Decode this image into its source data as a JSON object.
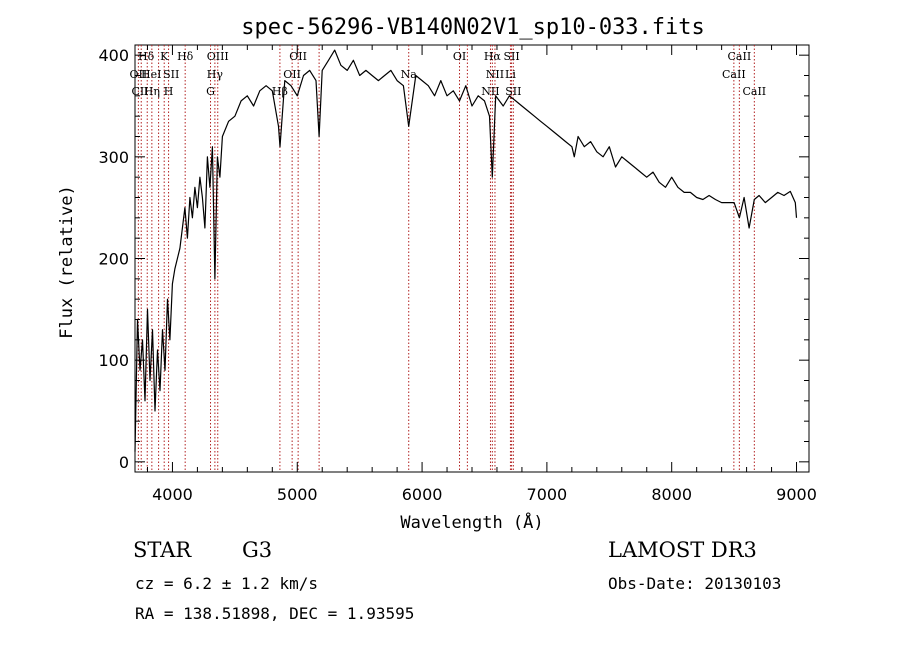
{
  "chart_data": {
    "type": "line",
    "title": "spec-56296-VB140N02V1_sp10-033.fits",
    "xlabel": "Wavelength (Å)",
    "ylabel": "Flux (relative)",
    "xlim": [
      3700,
      9100
    ],
    "ylim": [
      -10,
      410
    ],
    "xticks": [
      4000,
      5000,
      6000,
      7000,
      8000,
      9000
    ],
    "yticks": [
      0,
      100,
      200,
      300,
      400
    ],
    "grid": false,
    "series": [
      {
        "name": "flux",
        "x": [
          3700,
          3720,
          3740,
          3760,
          3780,
          3800,
          3820,
          3840,
          3860,
          3880,
          3900,
          3920,
          3940,
          3960,
          3980,
          4000,
          4020,
          4040,
          4060,
          4080,
          4100,
          4120,
          4140,
          4160,
          4180,
          4200,
          4220,
          4240,
          4260,
          4280,
          4300,
          4320,
          4340,
          4360,
          4380,
          4400,
          4450,
          4500,
          4550,
          4600,
          4650,
          4700,
          4750,
          4800,
          4850,
          4862,
          4900,
          4950,
          5000,
          5050,
          5100,
          5150,
          5175,
          5200,
          5250,
          5300,
          5350,
          5400,
          5450,
          5500,
          5550,
          5600,
          5650,
          5700,
          5750,
          5800,
          5850,
          5893,
          5950,
          6000,
          6050,
          6100,
          6150,
          6200,
          6250,
          6300,
          6350,
          6400,
          6450,
          6500,
          6540,
          6563,
          6590,
          6650,
          6700,
          6750,
          6800,
          6850,
          6900,
          6950,
          7000,
          7050,
          7100,
          7150,
          7200,
          7220,
          7250,
          7300,
          7350,
          7400,
          7450,
          7500,
          7550,
          7600,
          7650,
          7700,
          7750,
          7800,
          7850,
          7900,
          7950,
          8000,
          8050,
          8100,
          8150,
          8200,
          8250,
          8300,
          8350,
          8400,
          8450,
          8500,
          8542,
          8580,
          8620,
          8662,
          8700,
          8750,
          8800,
          8850,
          8900,
          8950,
          8990,
          9000
        ],
        "y": [
          10,
          140,
          90,
          120,
          60,
          150,
          80,
          130,
          50,
          110,
          70,
          130,
          90,
          160,
          120,
          175,
          190,
          200,
          210,
          230,
          250,
          220,
          260,
          240,
          270,
          250,
          280,
          260,
          230,
          300,
          270,
          310,
          180,
          300,
          280,
          320,
          335,
          340,
          355,
          360,
          350,
          365,
          370,
          365,
          330,
          310,
          375,
          370,
          360,
          380,
          385,
          375,
          320,
          385,
          395,
          405,
          390,
          385,
          395,
          380,
          385,
          380,
          375,
          380,
          385,
          375,
          370,
          330,
          380,
          375,
          370,
          360,
          375,
          360,
          365,
          355,
          370,
          350,
          360,
          355,
          340,
          280,
          360,
          350,
          360,
          355,
          350,
          345,
          340,
          335,
          330,
          325,
          320,
          315,
          310,
          300,
          320,
          310,
          315,
          305,
          300,
          310,
          290,
          300,
          295,
          290,
          285,
          280,
          285,
          275,
          270,
          280,
          270,
          265,
          265,
          260,
          258,
          262,
          258,
          255,
          255,
          255,
          240,
          260,
          230,
          258,
          262,
          255,
          260,
          265,
          262,
          266,
          255,
          240
        ]
      }
    ],
    "line_labels": [
      {
        "text": "Hδ",
        "x": 3789,
        "row": 1
      },
      {
        "text": "OII",
        "x": 3727,
        "row": 2
      },
      {
        "text": "CII",
        "x": 3740,
        "row": 3
      },
      {
        "text": "HeI",
        "x": 3830,
        "row": 2
      },
      {
        "text": "Hη",
        "x": 3835,
        "row": 3
      },
      {
        "text": "K",
        "x": 3934,
        "row": 1
      },
      {
        "text": "SII",
        "x": 3990,
        "row": 2
      },
      {
        "text": "H",
        "x": 3969,
        "row": 3
      },
      {
        "text": "Hδ",
        "x": 4102,
        "row": 1
      },
      {
        "text": "OIII",
        "x": 4363,
        "row": 1
      },
      {
        "text": "Hγ",
        "x": 4340,
        "row": 2
      },
      {
        "text": "G",
        "x": 4305,
        "row": 3
      },
      {
        "text": "OII",
        "x": 5007,
        "row": 1
      },
      {
        "text": "OII",
        "x": 4959,
        "row": 2
      },
      {
        "text": "Hβ",
        "x": 4861,
        "row": 3
      },
      {
        "text": "Na",
        "x": 5893,
        "row": 2
      },
      {
        "text": "OI",
        "x": 6300,
        "row": 1
      },
      {
        "text": "Hα",
        "x": 6563,
        "row": 1
      },
      {
        "text": "SII",
        "x": 6717,
        "row": 1
      },
      {
        "text": "NII",
        "x": 6584,
        "row": 2
      },
      {
        "text": "Li",
        "x": 6708,
        "row": 2
      },
      {
        "text": "NII",
        "x": 6548,
        "row": 3
      },
      {
        "text": "SII",
        "x": 6731,
        "row": 3
      },
      {
        "text": "CaII",
        "x": 8542,
        "row": 1
      },
      {
        "text": "CaII",
        "x": 8498,
        "row": 2
      },
      {
        "text": "CaII",
        "x": 8662,
        "row": 3
      }
    ],
    "line_marks": [
      3727,
      3750,
      3798,
      3835,
      3889,
      3934,
      3969,
      4102,
      4305,
      4340,
      4363,
      4861,
      4959,
      5007,
      5175,
      5893,
      6300,
      6363,
      6548,
      6563,
      6584,
      6708,
      6717,
      6731,
      8498,
      8542,
      8662
    ]
  },
  "info": {
    "class_label": "STAR",
    "subclass": "G3",
    "cz": "cz = 6.2 ± 1.2 km/s",
    "coords": "RA = 138.51898, DEC =    1.93595",
    "survey": "LAMOST DR3",
    "obs_date": "Obs-Date: 20130103"
  },
  "colors": {
    "axis": "#000000",
    "spectrum": "#000000",
    "line_marks": "#b22222"
  }
}
